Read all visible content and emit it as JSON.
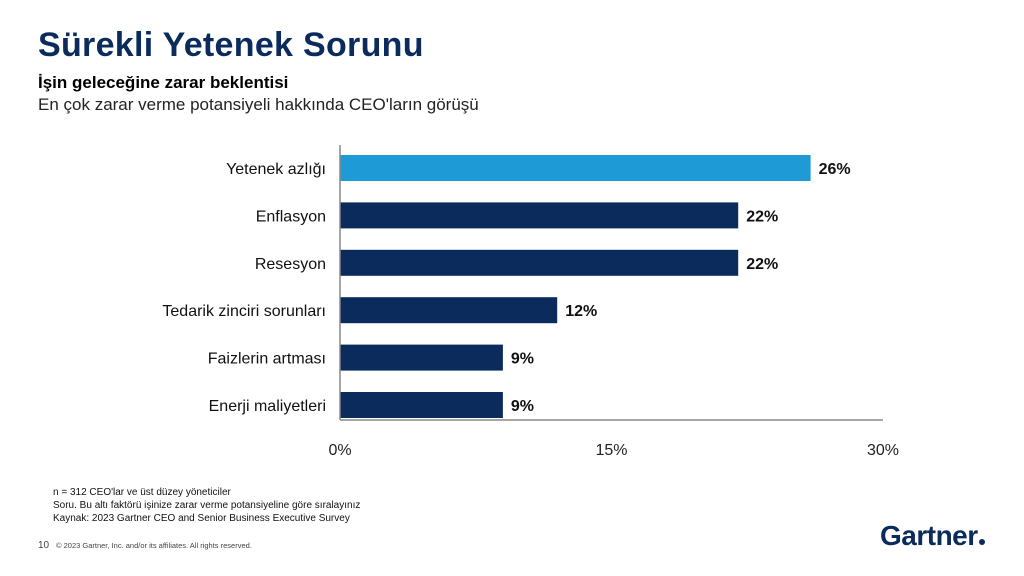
{
  "header": {
    "title": "Sürekli Yetenek Sorunu",
    "subtitle": "İşin geleceğine zarar beklentisi",
    "subtitle2": "En çok zarar verme potansiyeli hakkında CEO'ların görüşü"
  },
  "chart_data": {
    "type": "bar",
    "orientation": "horizontal",
    "categories": [
      "Yetenek azlığı",
      "Enflasyon",
      "Resesyon",
      "Tedarik zinciri sorunları",
      "Faizlerin artması",
      "Enerji maliyetleri"
    ],
    "values": [
      26,
      22,
      22,
      12,
      9,
      9
    ],
    "data_labels": [
      "26%",
      "22%",
      "22%",
      "12%",
      "9%",
      "9%"
    ],
    "xlim": [
      0,
      30
    ],
    "x_ticks": [
      0,
      15,
      30
    ],
    "x_tick_labels": [
      "0%",
      "15%",
      "30%"
    ],
    "colors": [
      "#1e9bd7",
      "#0b2b5c",
      "#0b2b5c",
      "#0b2b5c",
      "#0b2b5c",
      "#0b2b5c"
    ],
    "grid": false
  },
  "footnotes": {
    "n": "n = 312 CEO'lar ve üst düzey yöneticiler",
    "question": "Soru. Bu altı faktörü işinize zarar verme potansiyeline göre sıralayınız",
    "source": "Kaynak: 2023 Gartner CEO and Senior Business Executive Survey"
  },
  "footer": {
    "page_number": "10",
    "copyright": "© 2023 Gartner, Inc. and/or its affiliates. All rights reserved.",
    "logo_text": "Gartner"
  }
}
